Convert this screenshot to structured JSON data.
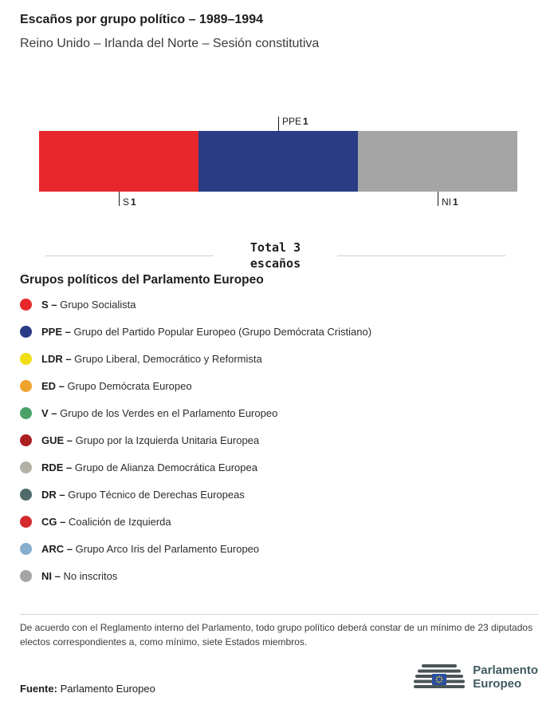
{
  "header": {
    "title": "Escaños por grupo político – 1989–1994",
    "subtitle": "Reino Unido – Irlanda del Norte – Sesión constitutiva"
  },
  "chart_data": {
    "type": "bar",
    "variant": "stacked-horizontal-seats",
    "title": "Escaños por grupo político – 1989–1994",
    "total_seats": 3,
    "series": [
      {
        "name": "S",
        "value": 1,
        "color": "#e8272c",
        "label_position": "below"
      },
      {
        "name": "PPE",
        "value": 1,
        "color": "#2a3c85",
        "label_position": "above"
      },
      {
        "name": "NI",
        "value": 1,
        "color": "#a5a5a5",
        "label_position": "below"
      }
    ]
  },
  "total": {
    "line1": "Total 3",
    "line2": "escaños"
  },
  "legend": {
    "heading": "Grupos políticos del Parlamento Europeo",
    "separator": "–",
    "items": [
      {
        "abbr": "S",
        "name": "Grupo Socialista",
        "color": "#e8272c"
      },
      {
        "abbr": "PPE",
        "name": "Grupo del Partido Popular Europeo (Grupo Demócrata Cristiano)",
        "color": "#2a3c85"
      },
      {
        "abbr": "LDR",
        "name": "Grupo Liberal, Democrático y Reformista",
        "color": "#f0dd13"
      },
      {
        "abbr": "ED",
        "name": "Grupo Demócrata Europeo",
        "color": "#eea32b"
      },
      {
        "abbr": "V",
        "name": "Grupo de los Verdes en el Parlamento Europeo",
        "color": "#4aa168"
      },
      {
        "abbr": "GUE",
        "name": "Grupo por la Izquierda Unitaria Europea",
        "color": "#ab1f22"
      },
      {
        "abbr": "RDE",
        "name": "Grupo de Alianza Democrática Europea",
        "color": "#b3b1a5"
      },
      {
        "abbr": "DR",
        "name": "Grupo Técnico de Derechas Europeas",
        "color": "#4e6a6b"
      },
      {
        "abbr": "CG",
        "name": "Coalición de Izquierda",
        "color": "#d6292e"
      },
      {
        "abbr": "ARC",
        "name": "Grupo Arco Iris del Parlamento Europeo",
        "color": "#87aecd"
      },
      {
        "abbr": "NI",
        "name": "No inscritos",
        "color": "#a5a5a5"
      }
    ]
  },
  "footnote": "De acuerdo con el Reglamento interno del Parlamento, todo grupo político deberá constar de un mínimo de 23 diputados electos correspondientes a, como mínimo, siete Estados miembros.",
  "source": {
    "label": "Fuente:",
    "value": "Parlamento Europeo"
  },
  "logo": {
    "line1": "Parlamento",
    "line2": "Europeo"
  }
}
